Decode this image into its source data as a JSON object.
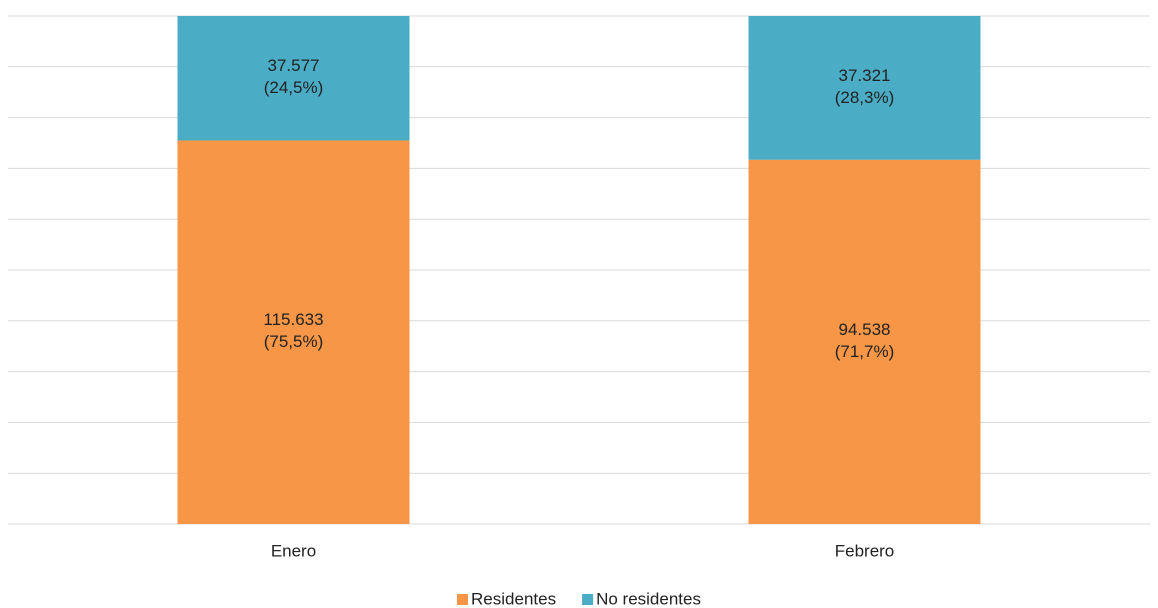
{
  "chart_data": {
    "type": "stacked_bar",
    "categories": [
      "Enero",
      "Febrero"
    ],
    "series": [
      {
        "name": "Residentes",
        "color": "#f79646",
        "values": [
          75.5,
          71.7
        ],
        "value_labels": [
          "115.633\n(75,5%)",
          "94.538\n(71,7%)"
        ]
      },
      {
        "name": "No residentes",
        "color": "#4bacc6",
        "values": [
          24.5,
          28.3
        ],
        "value_labels": [
          "37.577\n(24,5%)",
          "37.321\n(28,3%)"
        ]
      }
    ],
    "ylim": [
      0,
      100
    ],
    "yticks": [
      0,
      10,
      20,
      30,
      40,
      50,
      60,
      70,
      80,
      90,
      100
    ],
    "grid": true,
    "legend": "bottom"
  }
}
